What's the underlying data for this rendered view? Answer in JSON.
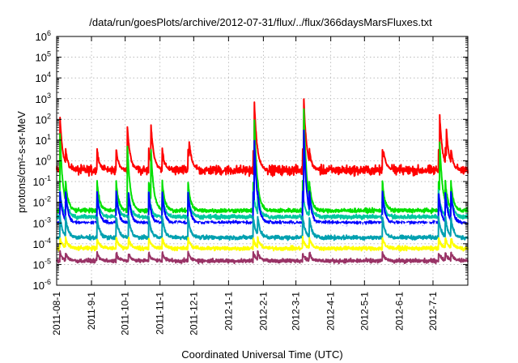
{
  "chart_data": {
    "type": "line",
    "title": "/data/run/goesPlots/archive/2012-07-31/flux/../flux/366daysMarsFluxes.txt",
    "xlabel": "Coordinated Universal Time (UTC)",
    "ylabel": "protons/cm²-s-sr-MeV",
    "y_scale": "log",
    "ylim": [
      1e-06,
      1000000
    ],
    "y_ticks": [
      {
        "value": 1e-06,
        "base": "10",
        "exp": "-6"
      },
      {
        "value": 1e-05,
        "base": "10",
        "exp": "-5"
      },
      {
        "value": 0.0001,
        "base": "10",
        "exp": "-4"
      },
      {
        "value": 0.001,
        "base": "10",
        "exp": "-3"
      },
      {
        "value": 0.01,
        "base": "10",
        "exp": "-2"
      },
      {
        "value": 0.1,
        "base": "10",
        "exp": "-1"
      },
      {
        "value": 1,
        "base": "10",
        "exp": "0"
      },
      {
        "value": 10,
        "base": "10",
        "exp": "1"
      },
      {
        "value": 100,
        "base": "10",
        "exp": "2"
      },
      {
        "value": 1000,
        "base": "10",
        "exp": "3"
      },
      {
        "value": 10000,
        "base": "10",
        "exp": "4"
      },
      {
        "value": 100000,
        "base": "10",
        "exp": "5"
      },
      {
        "value": 1000000,
        "base": "10",
        "exp": "6"
      }
    ],
    "xlim": [
      "2011-08-01",
      "2012-08-01"
    ],
    "x_ticks": [
      "2011-08-1",
      "2011-9-1",
      "2011-10-1",
      "2011-11-1",
      "2011-12-1",
      "2012-1-1",
      "2012-2-1",
      "2012-3-1",
      "2012-4-1",
      "2012-5-1",
      "2012-6-1",
      "2012-7-1"
    ],
    "x_tick_dates": [
      "2011-08-01",
      "2011-09-01",
      "2011-10-01",
      "2011-11-01",
      "2011-12-01",
      "2012-01-01",
      "2012-02-01",
      "2012-03-01",
      "2012-04-01",
      "2012-05-01",
      "2012-06-01",
      "2012-07-01"
    ],
    "grid": true,
    "legend": "none",
    "event_dates": [
      "2011-08-04",
      "2011-08-09",
      "2011-09-06",
      "2011-09-23",
      "2011-10-04",
      "2011-10-22",
      "2011-11-03",
      "2011-11-26",
      "2012-01-23",
      "2012-01-27",
      "2012-03-07",
      "2012-03-13",
      "2012-05-17",
      "2012-07-06",
      "2012-07-12",
      "2012-07-17"
    ],
    "series": [
      {
        "color": "#ff0000",
        "baseline": 0.35,
        "values": [
          {
            "x": "2011-08-04",
            "y": 120
          },
          {
            "x": "2011-10-03",
            "y": 40
          },
          {
            "x": "2011-10-24",
            "y": 50
          },
          {
            "x": "2011-11-27",
            "y": 8
          },
          {
            "x": "2012-01-24",
            "y": 600
          },
          {
            "x": "2012-03-08",
            "y": 1000
          },
          {
            "x": "2012-05-18",
            "y": 3
          },
          {
            "x": "2012-07-07",
            "y": 150
          },
          {
            "x": "2012-07-13",
            "y": 30
          }
        ]
      },
      {
        "color": "#00e000",
        "baseline": 0.004,
        "values": [
          {
            "x": "2011-08-04",
            "y": 20
          },
          {
            "x": "2011-10-03",
            "y": 5
          },
          {
            "x": "2011-10-24",
            "y": 3
          },
          {
            "x": "2012-01-24",
            "y": 100
          },
          {
            "x": "2012-03-08",
            "y": 300
          },
          {
            "x": "2012-07-07",
            "y": 8
          }
        ]
      },
      {
        "color": "#00c8a0",
        "baseline": 0.002,
        "values": []
      },
      {
        "color": "#0000ff",
        "baseline": 0.001,
        "values": [
          {
            "x": "2012-01-24",
            "y": 10
          },
          {
            "x": "2012-03-08",
            "y": 30
          }
        ]
      },
      {
        "color": "#ffffff",
        "baseline": 0.0008,
        "values": []
      },
      {
        "color": "#00a0b0",
        "baseline": 0.0002,
        "values": []
      },
      {
        "color": "#ffff00",
        "baseline": 6e-05,
        "values": []
      },
      {
        "color": "#993366",
        "baseline": 1.5e-05,
        "values": []
      }
    ]
  }
}
